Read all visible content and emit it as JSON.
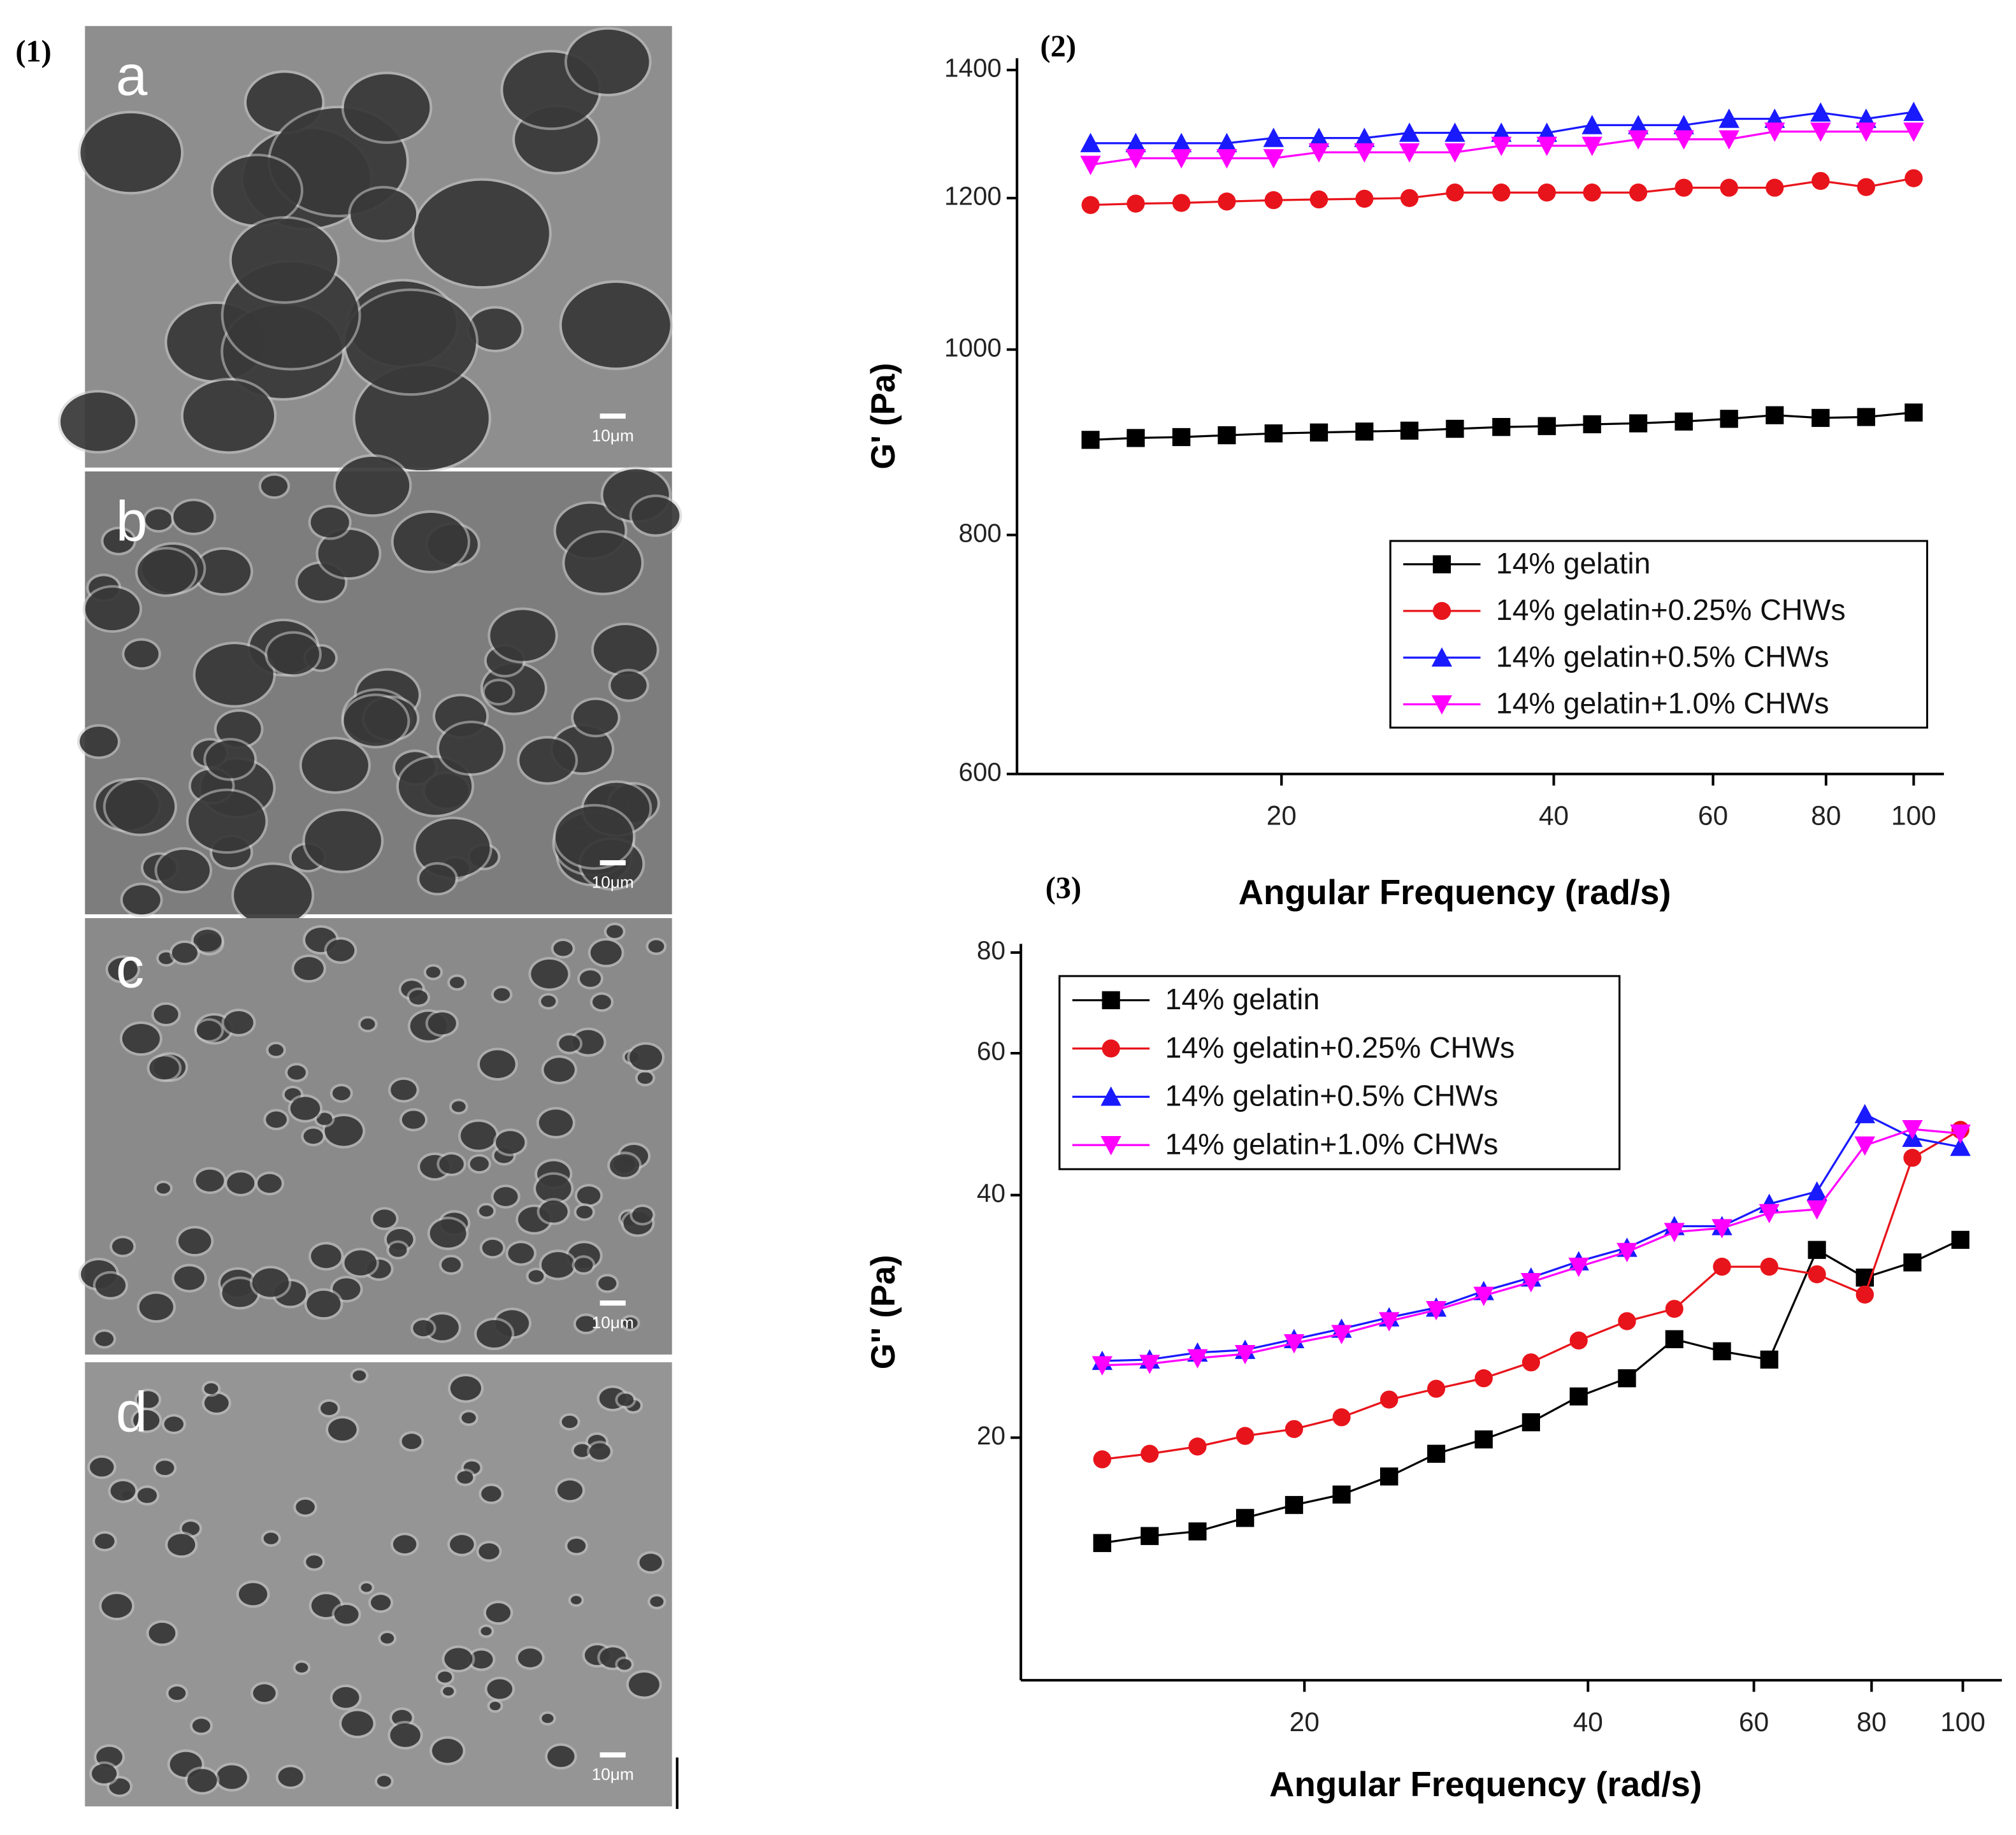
{
  "figure": {
    "label": "(1)",
    "panels": [
      {
        "letter": "a",
        "scale_bar": "10μm"
      },
      {
        "letter": "b",
        "scale_bar": "10μm"
      },
      {
        "letter": "c",
        "scale_bar": "10μm"
      },
      {
        "letter": "d",
        "scale_bar": "10μm"
      }
    ]
  },
  "chart_data": [
    {
      "type": "line",
      "panel_label": "(2)",
      "xlabel": "Angular Frequency (rad/s)",
      "ylabel": "G' (Pa)",
      "xscale": "log",
      "yscale": "log",
      "legend": "lower right",
      "xlim": [
        10.2,
        108
      ],
      "xticks": [
        20,
        40,
        60,
        80,
        100
      ],
      "ylim": [
        600,
        1420
      ],
      "yticks": [
        600,
        800,
        1000,
        1200,
        1400
      ],
      "x": [
        12.3,
        13.8,
        15.5,
        17.4,
        19.6,
        22.0,
        24.7,
        27.7,
        31.1,
        35.0,
        39.3,
        44.1,
        49.6,
        55.7,
        62.5,
        70.2,
        78.9,
        88.6,
        100
      ],
      "series": [
        {
          "name": "14% gelatin",
          "color": "#000000",
          "marker": "square",
          "values": [
            897,
            899,
            900,
            902,
            904,
            905,
            906,
            907,
            909,
            911,
            912,
            914,
            915,
            917,
            920,
            924,
            921,
            922,
            927
          ]
        },
        {
          "name": "14% gelatin+0.25% CHWs",
          "color": "#e8141b",
          "marker": "circle",
          "values": [
            1190,
            1192,
            1193,
            1195,
            1197,
            1198,
            1199,
            1200,
            1208,
            1208,
            1208,
            1208,
            1208,
            1215,
            1215,
            1215,
            1225,
            1216,
            1229
          ]
        },
        {
          "name": "14% gelatin+0.5% CHWs",
          "color": "#1a1aff",
          "marker": "triangle",
          "values": [
            1282,
            1282,
            1282,
            1282,
            1290,
            1290,
            1290,
            1298,
            1298,
            1298,
            1298,
            1310,
            1310,
            1310,
            1320,
            1320,
            1330,
            1320,
            1331
          ]
        },
        {
          "name": "14% gelatin+1.0% CHWs",
          "color": "#ff00ff",
          "marker": "down-triangle",
          "values": [
            1249,
            1259,
            1259,
            1259,
            1259,
            1268,
            1268,
            1268,
            1268,
            1278,
            1278,
            1278,
            1288,
            1288,
            1288,
            1300,
            1300,
            1300,
            1300
          ]
        }
      ]
    },
    {
      "type": "line",
      "panel_label": "(3)",
      "xlabel": "Angular Frequency (rad/s)",
      "ylabel": "G'' (Pa)",
      "xscale": "log",
      "yscale": "log",
      "legend": "upper left",
      "xlim": [
        10,
        110
      ],
      "xticks": [
        20,
        40,
        60,
        80,
        100
      ],
      "ylim": [
        10,
        82
      ],
      "yticks": [
        20,
        40,
        60,
        80
      ],
      "x": [
        12.2,
        13.7,
        15.4,
        17.3,
        19.5,
        21.9,
        24.6,
        27.6,
        31.0,
        34.8,
        39.1,
        44.0,
        49.4,
        55.5,
        62.3,
        70.0,
        78.7,
        88.4,
        99.4
      ],
      "series": [
        {
          "name": "14% gelatin",
          "color": "#000000",
          "marker": "square",
          "values": [
            14.8,
            15.1,
            15.3,
            15.9,
            16.5,
            17.0,
            17.9,
            19.1,
            19.9,
            20.9,
            22.5,
            23.7,
            26.5,
            25.6,
            25.0,
            34.2,
            31.6,
            33.0,
            35.2
          ]
        },
        {
          "name": "14% gelatin+0.25% CHWs",
          "color": "#e8141b",
          "marker": "circle",
          "values": [
            18.8,
            19.1,
            19.5,
            20.1,
            20.5,
            21.2,
            22.3,
            23.0,
            23.7,
            24.8,
            26.4,
            27.9,
            28.9,
            32.6,
            32.6,
            31.9,
            30.1,
            44.5,
            48.2
          ]
        },
        {
          "name": "14% gelatin+0.5% CHWs",
          "color": "#1a1aff",
          "marker": "triangle",
          "values": [
            24.9,
            25.0,
            25.5,
            25.7,
            26.5,
            27.3,
            28.2,
            29.0,
            30.4,
            31.6,
            33.1,
            34.4,
            36.6,
            36.6,
            39.0,
            40.4,
            50.4,
            47.1,
            45.9
          ]
        },
        {
          "name": "14% gelatin+1.0% CHWs",
          "color": "#ff00ff",
          "marker": "down-triangle",
          "values": [
            24.6,
            24.7,
            25.1,
            25.4,
            26.2,
            26.9,
            27.9,
            28.8,
            30.0,
            31.2,
            32.6,
            34.0,
            36.0,
            36.4,
            38.0,
            38.4,
            46.1,
            48.3,
            47.7
          ]
        }
      ]
    }
  ]
}
